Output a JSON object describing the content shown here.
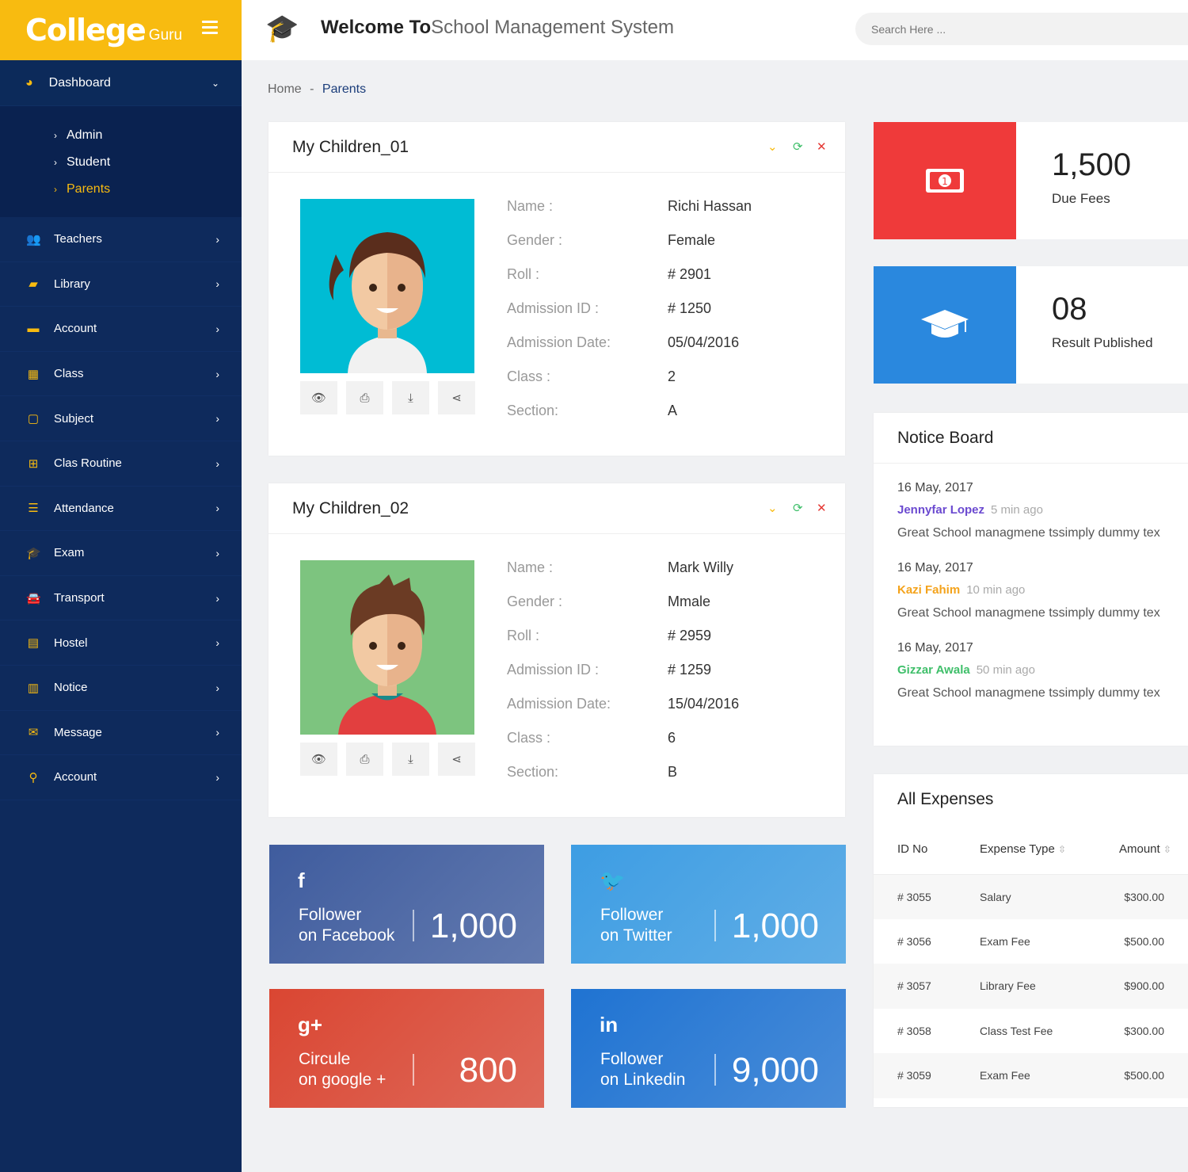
{
  "brand": {
    "name": "College",
    "sub": "Guru"
  },
  "header": {
    "welcome_bold": "Welcome To",
    "welcome_rest": "School Management System",
    "search_placeholder": "Search Here ..."
  },
  "sidebar": {
    "dashboard": "Dashboard",
    "sub": [
      "Admin",
      "Student",
      "Parents"
    ],
    "items": [
      {
        "label": "Teachers",
        "icon": "teachers-icon",
        "glyph": "👥"
      },
      {
        "label": "Library",
        "icon": "book-icon",
        "glyph": "▰"
      },
      {
        "label": "Account",
        "icon": "briefcase-icon",
        "glyph": "▬"
      },
      {
        "label": "Class",
        "icon": "grid-icon",
        "glyph": "▦"
      },
      {
        "label": "Subject",
        "icon": "copy-icon",
        "glyph": "▢"
      },
      {
        "label": "Clas Routine",
        "icon": "sitemap-icon",
        "glyph": "⊞"
      },
      {
        "label": "Attendance",
        "icon": "list-icon",
        "glyph": "☰"
      },
      {
        "label": "Exam",
        "icon": "graduation-cap-icon",
        "glyph": "🎓"
      },
      {
        "label": "Transport",
        "icon": "car-icon",
        "glyph": "🚘"
      },
      {
        "label": "Hostel",
        "icon": "building-icon",
        "glyph": "▤"
      },
      {
        "label": "Notice",
        "icon": "map-icon",
        "glyph": "▥"
      },
      {
        "label": "Message",
        "icon": "envelope-icon",
        "glyph": "✉"
      },
      {
        "label": "Account",
        "icon": "map-marker-icon",
        "glyph": "⚲"
      }
    ]
  },
  "breadcrumb": {
    "home": "Home",
    "sep": "-",
    "current": "Parents"
  },
  "children": [
    {
      "title": "My Children_01",
      "fields": [
        [
          "Name :",
          "Richi Hassan"
        ],
        [
          "Gender :",
          "Female"
        ],
        [
          "Roll :",
          "# 2901"
        ],
        [
          "Admission ID :",
          "# 1250"
        ],
        [
          "Admission Date:",
          "05/04/2016"
        ],
        [
          "Class :",
          "2"
        ],
        [
          "Section:",
          "A"
        ]
      ]
    },
    {
      "title": "My Children_02",
      "fields": [
        [
          "Name :",
          "Mark Willy"
        ],
        [
          "Gender :",
          "Mmale"
        ],
        [
          "Roll :",
          "# 2959"
        ],
        [
          "Admission ID :",
          "# 1259"
        ],
        [
          "Admission Date:",
          "15/04/2016"
        ],
        [
          "Class :",
          "6"
        ],
        [
          "Section:",
          "B"
        ]
      ]
    }
  ],
  "stats": [
    {
      "value": "1,500",
      "label": "Due Fees",
      "color": "#ef3a3a"
    },
    {
      "value": "08",
      "label": "Result Published",
      "color": "#2a88de"
    }
  ],
  "social": [
    {
      "icon": "f",
      "l1": "Follower",
      "l2": "on Facebook",
      "value": "1,000",
      "color": "#3f5c9e"
    },
    {
      "icon": "🐦",
      "l1": "Follower",
      "l2": "on Twitter",
      "value": "1,000",
      "color": "#3d9de3"
    },
    {
      "icon": "g+",
      "l1": "Circule",
      "l2": "on google +",
      "value": "800",
      "color": "#da4632"
    },
    {
      "icon": "in",
      "l1": "Follower",
      "l2": "on Linkedin",
      "value": "9,000",
      "color": "#1f73d2"
    }
  ],
  "notice": {
    "title": "Notice Board",
    "items": [
      {
        "date": "16 May, 2017",
        "who": "Jennyfar Lopez",
        "ago": "5 min ago",
        "color": "#6b4ad0",
        "text": "Great School managmene tssimply dummy tex"
      },
      {
        "date": "16 May, 2017",
        "who": "Kazi Fahim",
        "ago": "10 min ago",
        "color": "#f4a31c",
        "text": "Great School managmene tssimply dummy tex"
      },
      {
        "date": "16 May, 2017",
        "who": "Gizzar Awala",
        "ago": "50 min ago",
        "color": "#3fbf6a",
        "text": "Great School managmene tssimply dummy tex"
      }
    ]
  },
  "expenses": {
    "title": "All Expenses",
    "headers": [
      "ID No",
      "Expense Type",
      "Amount"
    ],
    "rows": [
      [
        "# 3055",
        "Salary",
        "$300.00"
      ],
      [
        "# 3056",
        "Exam Fee",
        "$500.00"
      ],
      [
        "# 3057",
        "Library Fee",
        "$900.00"
      ],
      [
        "# 3058",
        "Class Test Fee",
        "$300.00"
      ],
      [
        "# 3059",
        "Exam Fee",
        "$500.00"
      ]
    ]
  }
}
